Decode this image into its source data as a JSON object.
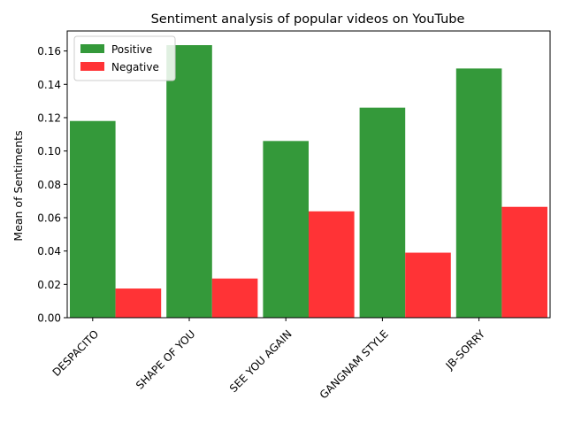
{
  "chart_data": {
    "type": "bar",
    "title": "Sentiment analysis of popular videos on YouTube",
    "xlabel": "",
    "ylabel": "Mean of Sentiments",
    "categories": [
      "DESPACITO",
      "SHAPE OF YOU",
      "SEE YOU AGAIN",
      "GANGNAM STYLE",
      "JB-SORRY"
    ],
    "series": [
      {
        "name": "Positive",
        "color": "#34993a",
        "values": [
          0.118,
          0.1635,
          0.106,
          0.126,
          0.1495
        ]
      },
      {
        "name": "Negative",
        "color": "#ff3336",
        "values": [
          0.0175,
          0.0235,
          0.0638,
          0.039,
          0.0665
        ]
      }
    ],
    "ylim": [
      0,
      0.172
    ],
    "yticks": [
      "0.00",
      "0.02",
      "0.04",
      "0.06",
      "0.08",
      "0.10",
      "0.12",
      "0.14",
      "0.16"
    ],
    "legend_position": "top-left",
    "grid": false
  }
}
